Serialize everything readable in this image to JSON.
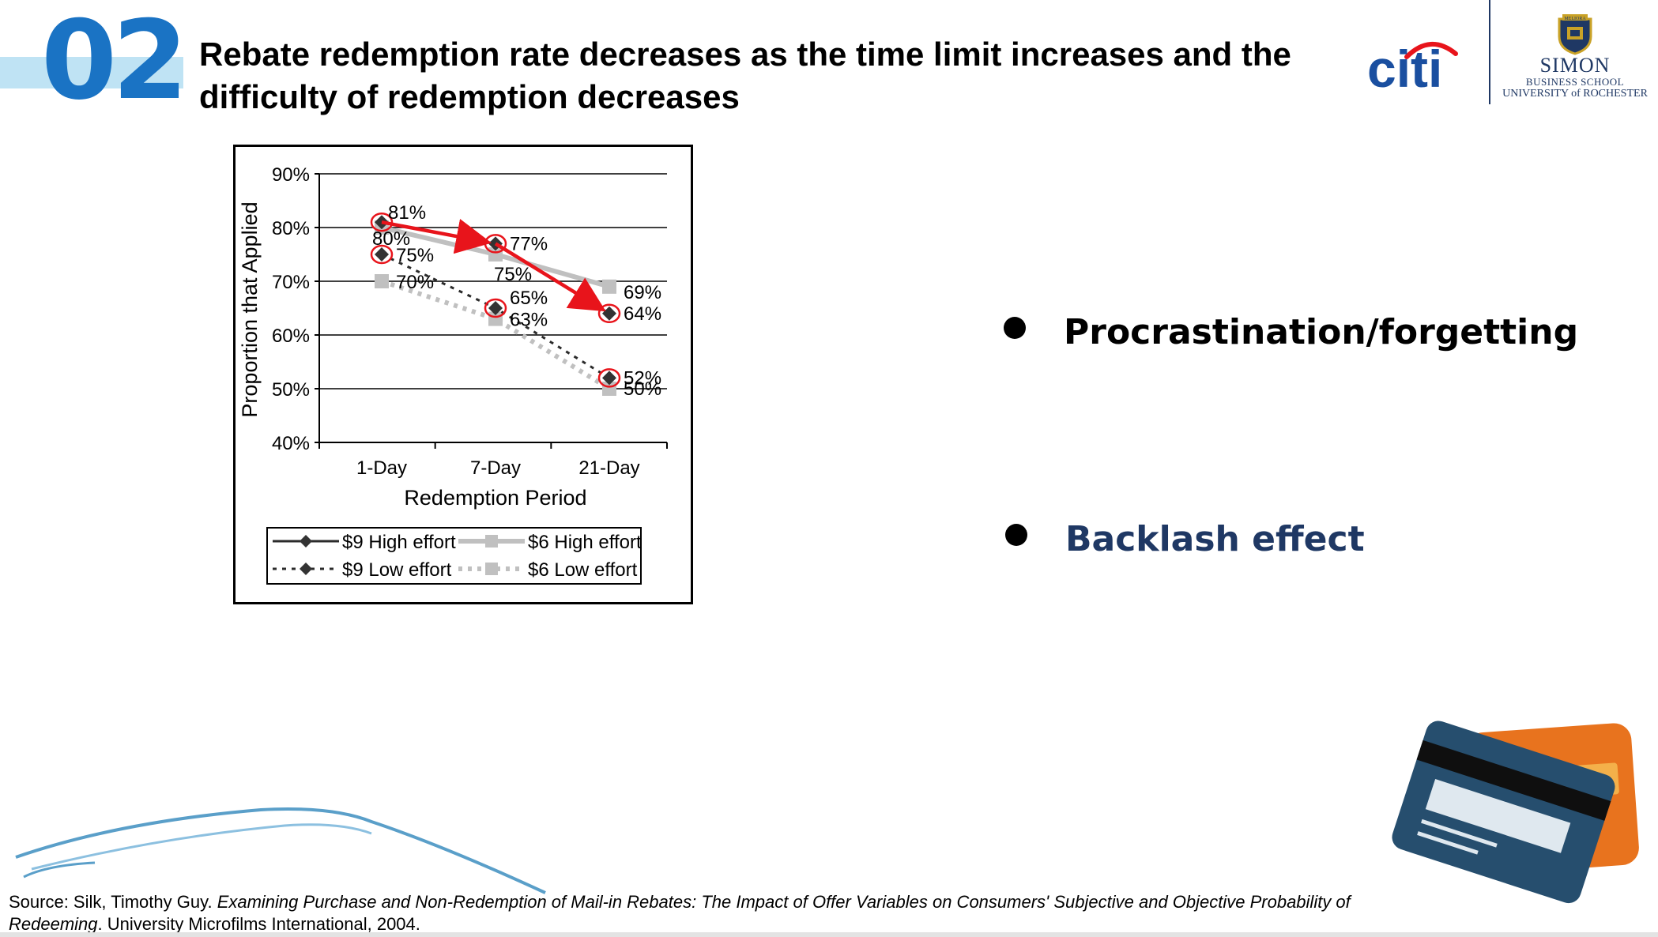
{
  "slide": {
    "number": "02",
    "title": "Rebate redemption rate decreases as the time limit increases and the difficulty of redemption decreases"
  },
  "logos": {
    "citi_text": "citi",
    "simon": {
      "name": "SIMON",
      "school": "BUSINESS SCHOOL",
      "university": "UNIVERSITY of ROCHESTER",
      "crest_text": "MELIORA"
    }
  },
  "bullets": [
    {
      "label": "Procrastination/forgetting"
    },
    {
      "label": "Backlash effect"
    }
  ],
  "source": {
    "prefix": "Source: Silk, Timothy Guy. ",
    "title_italic": "Examining Purchase and Non-Redemption of Mail-in Rebates: The Impact of Offer Variables on Consumers' Subjective and Objective Probability of Redeeming",
    "suffix": ". University Microfilms International, 2004."
  },
  "colors": {
    "title_number": "#1a73c4",
    "number_band": "#bfe3f4",
    "highlight_red": "#e8141b",
    "dark_series": "#2b2b2b",
    "gray_series": "#c0c0c0",
    "navy": "#1f3864"
  },
  "chart_data": {
    "type": "line",
    "xlabel": "Redemption Period",
    "ylabel": "Proportion that Applied",
    "categories": [
      "1-Day",
      "7-Day",
      "21-Day"
    ],
    "ylim": [
      40,
      90
    ],
    "yticks": [
      "40%",
      "50%",
      "60%",
      "70%",
      "80%",
      "90%"
    ],
    "grid": true,
    "legend_position": "bottom",
    "series": [
      {
        "name": "$9 High effort",
        "values": [
          81,
          77,
          64
        ],
        "labels": [
          "81%",
          "77%",
          "64%"
        ],
        "color": "#2b2b2b",
        "style": "solid",
        "marker": "diamond"
      },
      {
        "name": "$6 High effort",
        "values": [
          80,
          75,
          69
        ],
        "labels": [
          "80%",
          "75%",
          "69%"
        ],
        "color": "#c0c0c0",
        "style": "solid",
        "marker": "square"
      },
      {
        "name": "$9 Low effort",
        "values": [
          75,
          65,
          52
        ],
        "labels": [
          "75%",
          "65%",
          "52%"
        ],
        "color": "#2b2b2b",
        "style": "dashed",
        "marker": "diamond"
      },
      {
        "name": "$6 Low effort",
        "values": [
          70,
          63,
          50
        ],
        "labels": [
          "70%",
          "63%",
          "50%"
        ],
        "color": "#c0c0c0",
        "style": "dashed",
        "marker": "square"
      }
    ],
    "annotations": {
      "red_arrow_path": {
        "series": "$9 High effort",
        "points": [
          "1-Day",
          "7-Day",
          "21-Day"
        ]
      },
      "red_circles": [
        {
          "series": "$9 High effort",
          "category": "1-Day"
        },
        {
          "series": "$9 High effort",
          "category": "7-Day"
        },
        {
          "series": "$9 High effort",
          "category": "21-Day"
        },
        {
          "series": "$9 Low effort",
          "category": "1-Day"
        },
        {
          "series": "$9 Low effort",
          "category": "7-Day"
        },
        {
          "series": "$9 Low effort",
          "category": "21-Day"
        }
      ]
    }
  }
}
